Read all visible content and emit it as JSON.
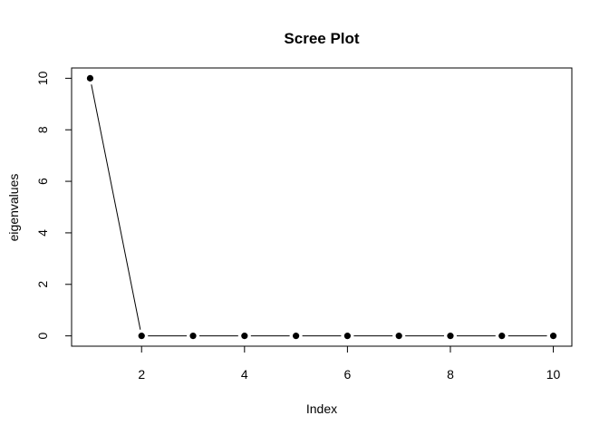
{
  "chart_data": {
    "type": "line",
    "title": "Scree Plot",
    "xlabel": "Index",
    "ylabel": "eigenvalues",
    "x": [
      1,
      2,
      3,
      4,
      5,
      6,
      7,
      8,
      9,
      10
    ],
    "values": [
      10,
      0,
      0,
      0,
      0,
      0,
      0,
      0,
      0,
      0
    ],
    "xlim": [
      0.64,
      10.36
    ],
    "ylim": [
      -0.4,
      10.4
    ],
    "xticks": [
      "2",
      "4",
      "6",
      "8",
      "10"
    ],
    "yticks": [
      "0",
      "2",
      "4",
      "6",
      "8",
      "10"
    ],
    "grid": false,
    "point_color": "#000000",
    "line_color": "#000000"
  }
}
